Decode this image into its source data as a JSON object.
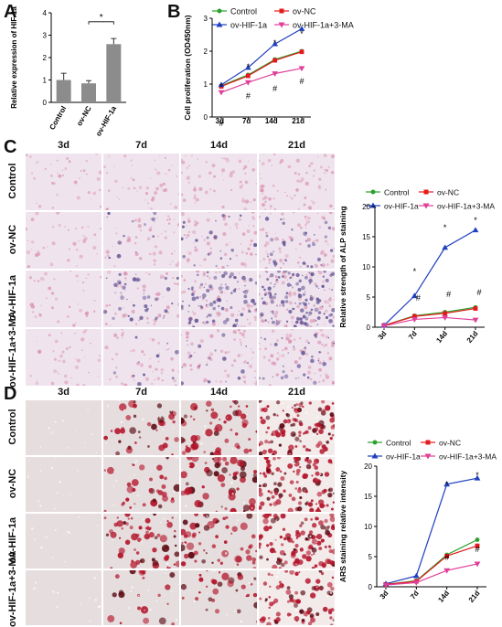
{
  "panels": {
    "A": {
      "label": "A",
      "chart_data": {
        "type": "bar",
        "categories": [
          "Control",
          "ov-NC",
          "ov-HIF-1a"
        ],
        "values": [
          1.0,
          0.85,
          2.6
        ],
        "errors": [
          0.3,
          0.12,
          0.25
        ],
        "ylabel": "Relative expression of HIF-1a",
        "ylim": [
          0,
          4
        ],
        "yticks": [
          "0",
          "1",
          "2",
          "3",
          "4"
        ],
        "annotation": "*",
        "bar_color": "#8c8c8c"
      }
    },
    "B": {
      "label": "B",
      "chart_data": {
        "type": "line",
        "categories": [
          "3d",
          "7d",
          "14d",
          "21d"
        ],
        "ylabel": "Cell proliferation (OD450nm)",
        "ylim": [
          0,
          3
        ],
        "yticks": [
          "0",
          "1",
          "2",
          "3"
        ],
        "series": [
          {
            "name": "Control",
            "values": [
              0.95,
              1.28,
              1.75,
              2.0
            ],
            "color": "#2ca02c",
            "marker": "circle"
          },
          {
            "name": "ov-NC",
            "values": [
              0.93,
              1.25,
              1.72,
              1.98
            ],
            "color": "#e41a1c",
            "marker": "square"
          },
          {
            "name": "ov-HIF-1a",
            "values": [
              0.98,
              1.5,
              2.22,
              2.68
            ],
            "color": "#1f3fbf",
            "marker": "triangle"
          },
          {
            "name": "ov-HIF-1a+3-MA",
            "values": [
              0.75,
              1.05,
              1.32,
              1.48
            ],
            "color": "#e0409a",
            "marker": "triangle-down"
          }
        ],
        "star_marks": [
          "*",
          "*",
          "*",
          "*"
        ],
        "hash_marks": [
          "#",
          "#",
          "#",
          "#"
        ]
      }
    },
    "C": {
      "label": "C",
      "columns": [
        "3d",
        "7d",
        "14d",
        "21d"
      ],
      "rows": [
        "Control",
        "ov-NC",
        "ov-HIF-1a",
        "ov-HIF-1a+3-MA"
      ],
      "chart_data": {
        "type": "line",
        "categories": [
          "3d",
          "7d",
          "14d",
          "21d"
        ],
        "ylabel": "Relative strength of ALP staining",
        "ylim": [
          0,
          20
        ],
        "yticks": [
          "0",
          "5",
          "10",
          "15",
          "20"
        ],
        "series": [
          {
            "name": "Control",
            "values": [
              0.3,
              1.9,
              2.5,
              3.3
            ],
            "color": "#2ca02c",
            "marker": "circle"
          },
          {
            "name": "ov-NC",
            "values": [
              0.3,
              1.8,
              2.3,
              3.1
            ],
            "color": "#e41a1c",
            "marker": "square"
          },
          {
            "name": "ov-HIF-1a",
            "values": [
              0.3,
              5.2,
              13.2,
              16.1
            ],
            "color": "#1f3fbf",
            "marker": "triangle"
          },
          {
            "name": "ov-HIF-1a+3-MA",
            "values": [
              0.2,
              1.3,
              1.6,
              1.2
            ],
            "color": "#e0409a",
            "marker": "triangle-down"
          }
        ],
        "star_marks": [
          "*",
          "*",
          "*"
        ],
        "hash_marks": [
          "#",
          "#",
          "#"
        ]
      }
    },
    "D": {
      "label": "D",
      "columns": [
        "3d",
        "7d",
        "14d",
        "21d"
      ],
      "rows": [
        "Control",
        "ov-NC",
        "ov-HIF-1a",
        "ov-HIF-1a+3-MA"
      ],
      "chart_data": {
        "type": "line",
        "categories": [
          "3d",
          "7d",
          "14d",
          "21d"
        ],
        "ylabel": "ARS staining relative intensity",
        "ylim": [
          0,
          20
        ],
        "yticks": [
          "0",
          "5",
          "10",
          "15",
          "20"
        ],
        "series": [
          {
            "name": "Control",
            "values": [
              0.4,
              1.0,
              5.3,
              7.8
            ],
            "color": "#2ca02c",
            "marker": "circle"
          },
          {
            "name": "ov-NC",
            "values": [
              0.4,
              0.9,
              5.1,
              6.8
            ],
            "color": "#e41a1c",
            "marker": "square"
          },
          {
            "name": "ov-HIF-1a",
            "values": [
              0.5,
              1.8,
              17.0,
              18.0
            ],
            "color": "#1f3fbf",
            "marker": "triangle"
          },
          {
            "name": "ov-HIF-1a+3-MA",
            "values": [
              0.3,
              0.7,
              2.7,
              3.8
            ],
            "color": "#e0409a",
            "marker": "triangle-down"
          }
        ],
        "star_marks": [
          "*",
          "*"
        ],
        "hash_marks": [
          "#",
          "#"
        ]
      }
    }
  },
  "staining": {
    "alp_base": "#efe4ee",
    "alp_pink": "#d98aa9",
    "alp_purple": "#5b4b8f",
    "ars_base": "#e6dede",
    "ars_red": "#b3142a",
    "ars_dark": "#5a0a12"
  }
}
